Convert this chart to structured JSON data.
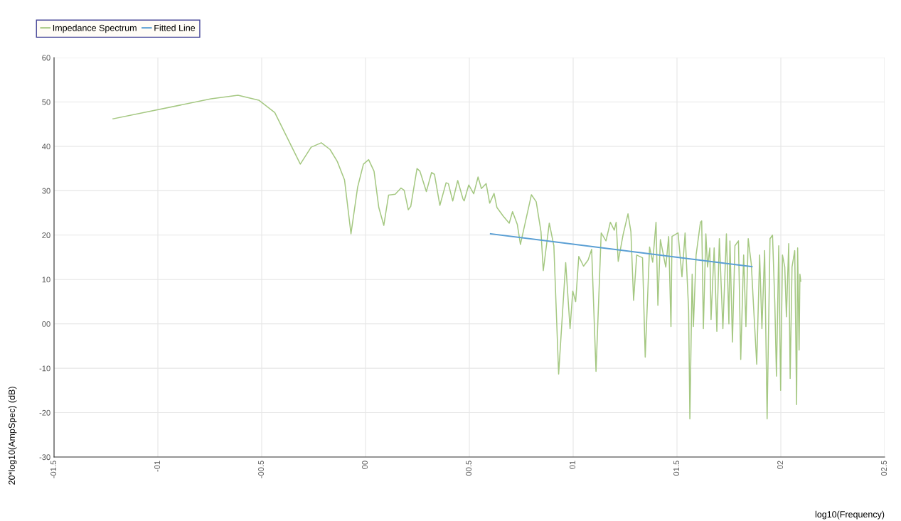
{
  "chart_data": {
    "type": "line",
    "xlabel": "log10(Frequency)",
    "ylabel": "20*log10(AmpSpec) (dB)",
    "series": [
      {
        "name": "Impedance Spectrum",
        "color": "#a5c882",
        "x": [
          -1.216,
          -0.744,
          -0.614,
          -0.514,
          -0.437,
          -0.314,
          -0.262,
          -0.213,
          -0.171,
          -0.136,
          -0.101,
          -0.07,
          -0.038,
          -0.01,
          0.015,
          0.041,
          0.064,
          0.088,
          0.111,
          0.143,
          0.171,
          0.186,
          0.206,
          0.218,
          0.248,
          0.262,
          0.293,
          0.318,
          0.332,
          0.358,
          0.388,
          0.399,
          0.42,
          0.444,
          0.469,
          0.475,
          0.497,
          0.521,
          0.542,
          0.558,
          0.581,
          0.598,
          0.619,
          0.633,
          0.663,
          0.692,
          0.708,
          0.731,
          0.746,
          0.771,
          0.799,
          0.822,
          0.845,
          0.856,
          0.885,
          0.907,
          0.93,
          0.964,
          0.985,
          0.998,
          1.012,
          1.027,
          1.05,
          1.072,
          1.089,
          1.11,
          1.135,
          1.158,
          1.179,
          1.198,
          1.207,
          1.217,
          1.24,
          1.264,
          1.278,
          1.291,
          1.306,
          1.334,
          1.347,
          1.368,
          1.383,
          1.399,
          1.408,
          1.42,
          1.446,
          1.46,
          1.471,
          1.476,
          1.505,
          1.524,
          1.539,
          1.556,
          1.562,
          1.573,
          1.579,
          1.592,
          1.613,
          1.619,
          1.627,
          1.639,
          1.647,
          1.658,
          1.664,
          1.679,
          1.692,
          1.704,
          1.721,
          1.738,
          1.75,
          1.755,
          1.767,
          1.779,
          1.796,
          1.807,
          1.821,
          1.832,
          1.843,
          1.858,
          1.869,
          1.884,
          1.898,
          1.909,
          1.922,
          1.934,
          1.948,
          1.96,
          1.971,
          1.979,
          1.99,
          1.999,
          2.008,
          2.019,
          2.027,
          2.038,
          2.045,
          2.054,
          2.067,
          2.076,
          2.081,
          2.088,
          2.092,
          2.096
        ],
        "values": [
          46.2,
          50.7,
          51.5,
          50.4,
          47.6,
          36.0,
          39.8,
          40.8,
          39.3,
          36.6,
          32.4,
          20.3,
          30.8,
          36.0,
          37.0,
          34.4,
          26.2,
          22.2,
          29.0,
          29.2,
          30.6,
          30.1,
          25.7,
          26.5,
          35.0,
          34.4,
          29.8,
          34.1,
          33.7,
          26.7,
          31.8,
          31.6,
          27.7,
          32.3,
          28.2,
          27.7,
          31.3,
          29.3,
          33.1,
          30.5,
          31.6,
          27.2,
          29.4,
          26.2,
          24.3,
          22.7,
          25.3,
          22.4,
          17.9,
          23.2,
          29.1,
          27.5,
          20.8,
          12.0,
          22.7,
          17.6,
          -11.3,
          13.8,
          -1.1,
          7.4,
          5.0,
          15.2,
          13.0,
          14.4,
          16.8,
          -10.7,
          20.5,
          18.7,
          22.9,
          21.1,
          22.9,
          14.1,
          20.0,
          24.8,
          20.8,
          5.3,
          15.5,
          14.9,
          -7.5,
          17.3,
          13.9,
          22.9,
          4.2,
          19.0,
          12.8,
          19.7,
          -0.6,
          19.7,
          20.5,
          10.6,
          20.5,
          3.1,
          -21.4,
          11.2,
          -0.6,
          15.5,
          22.9,
          23.2,
          -1.1,
          20.3,
          12.8,
          17.1,
          1.0,
          17.1,
          -1.7,
          19.2,
          -1.1,
          20.3,
          0,
          18.7,
          -4.1,
          17.6,
          18.7,
          -8.0,
          15.5,
          -0.6,
          19.2,
          13.4,
          3.7,
          -9.1,
          15.5,
          -1.1,
          16.5,
          -21.4,
          19.2,
          20.0,
          4.8,
          -11.8,
          17.6,
          -15.0,
          15.5,
          12.8,
          1.6,
          18.1,
          -12.3,
          12.8,
          16.5,
          -18.2,
          17.1,
          -5.9,
          11.2,
          9.6
        ]
      },
      {
        "name": "Fitted Line",
        "color": "#5a9fd4",
        "x": [
          0.602,
          1.861
        ],
        "values": [
          20.3,
          12.9
        ]
      }
    ],
    "xlim": [
      -1.5,
      2.5
    ],
    "xticks": [
      {
        "value": -1.5,
        "label": "-01.5"
      },
      {
        "value": -1,
        "label": "-01"
      },
      {
        "value": -0.5,
        "label": "-00.5"
      },
      {
        "value": 0,
        "label": "00"
      },
      {
        "value": 0.5,
        "label": "00.5"
      },
      {
        "value": 1,
        "label": "01"
      },
      {
        "value": 1.5,
        "label": "01.5"
      },
      {
        "value": 2,
        "label": "02"
      },
      {
        "value": 2.5,
        "label": "02.5"
      }
    ],
    "ylim": [
      -30,
      60
    ],
    "yticks": [
      -30,
      -20,
      -10,
      {
        "value": 0,
        "label": "00"
      },
      10,
      20,
      30,
      40,
      50,
      60
    ],
    "grid": true,
    "legend": "top left",
    "marker": "none",
    "line_style": "solid"
  }
}
